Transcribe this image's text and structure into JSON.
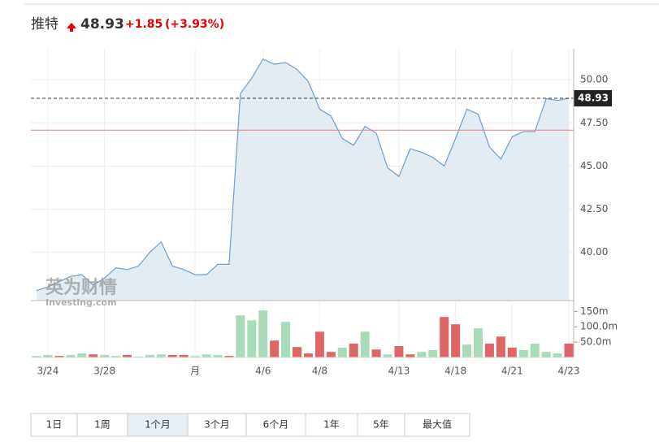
{
  "chart_data": {
    "type": "stock",
    "title": "推特",
    "price": 48.93,
    "change": "+1.85",
    "change_percent": "(+3.93%)",
    "watermark": "英为财情",
    "watermark_sub": "Investing.com",
    "categories": [
      null,
      "3/24",
      null,
      null,
      null,
      null,
      "3/28",
      null,
      null,
      null,
      null,
      null,
      null,
      null,
      "月",
      null,
      null,
      null,
      null,
      null,
      "4/6",
      null,
      null,
      null,
      null,
      "4/8",
      null,
      null,
      null,
      null,
      null,
      null,
      "4/13",
      null,
      null,
      null,
      null,
      "4/18",
      null,
      null,
      null,
      null,
      "4/21",
      null,
      null,
      null,
      null,
      "4/23"
    ],
    "series": [
      {
        "color": "#6a9fcf",
        "area_color": "#e3ebf3",
        "axis": "y",
        "values": [
          37.78,
          38.0,
          38.3,
          38.6,
          38.7,
          38.1,
          38.5,
          39.1,
          39.0,
          39.2,
          40.0,
          40.6,
          39.2,
          39.0,
          38.7,
          38.7,
          39.3,
          39.3,
          49.2,
          50.1,
          51.2,
          50.9,
          51.0,
          50.6,
          49.9,
          48.3,
          47.9,
          46.6,
          46.2,
          47.3,
          46.9,
          44.9,
          44.4,
          46.0,
          45.8,
          45.5,
          45.0,
          46.6,
          48.3,
          48.0,
          46.1,
          45.4,
          46.7,
          47.0,
          47.0,
          48.9,
          48.8,
          48.93
        ]
      },
      {
        "axis": "y2",
        "values": [
          5,
          8,
          5,
          8,
          13,
          10,
          8,
          5,
          8,
          3,
          8,
          10,
          8,
          8,
          5,
          10,
          8,
          5,
          137,
          121,
          153,
          55,
          116,
          34,
          13,
          84,
          18,
          32,
          45,
          84,
          26,
          10,
          37,
          10,
          18,
          24,
          132,
          108,
          42,
          95,
          45,
          68,
          32,
          24,
          45,
          18,
          13,
          45
        ],
        "colors": [
          "#a8dcb8",
          "#a8dcb8",
          "#e06666",
          "#a8dcb8",
          "#a8dcb8",
          "#e06666",
          "#a8dcb8",
          "#a8dcb8",
          "#e06666",
          "#a8dcb8",
          "#a8dcb8",
          "#a8dcb8",
          "#e06666",
          "#e06666",
          "#a8dcb8",
          "#a8dcb8",
          "#a8dcb8",
          "#e06666",
          "#a8dcb8",
          "#a8dcb8",
          "#a8dcb8",
          "#e06666",
          "#a8dcb8",
          "#e06666",
          "#e06666",
          "#e06666",
          "#e06666",
          "#a8dcb8",
          "#e06666",
          "#a8dcb8",
          "#e06666",
          "#a8dcb8",
          "#e06666",
          "#e06666",
          "#a8dcb8",
          "#a8dcb8",
          "#e06666",
          "#e06666",
          "#a8dcb8",
          "#a8dcb8",
          "#e06666",
          "#e06666",
          "#e06666",
          "#a8dcb8",
          "#a8dcb8",
          "#a8dcb8",
          "#a8dcb8",
          "#e06666"
        ]
      }
    ],
    "previous_close": 47.08,
    "ylim": [
      37.2,
      51.8
    ],
    "yticks": [
      {
        "value": 40,
        "label": "40.00"
      },
      {
        "value": 42.5,
        "label": "42.50"
      },
      {
        "value": 45,
        "label": "45.00"
      },
      {
        "value": 47.5,
        "label": "47.50"
      },
      {
        "value": 50,
        "label": "50.00"
      }
    ],
    "y2lim": [
      0,
      180
    ],
    "y2ticks": [
      {
        "value": 50,
        "label": "50.0m"
      },
      {
        "value": 100,
        "label": "100.0m"
      },
      {
        "value": 150,
        "label": "150m"
      }
    ],
    "grid": true,
    "ranges": [
      "1日",
      "1周",
      "1个月",
      "3个月",
      "6个月",
      "1年",
      "5年",
      "最大值"
    ],
    "selected_range": 2
  }
}
